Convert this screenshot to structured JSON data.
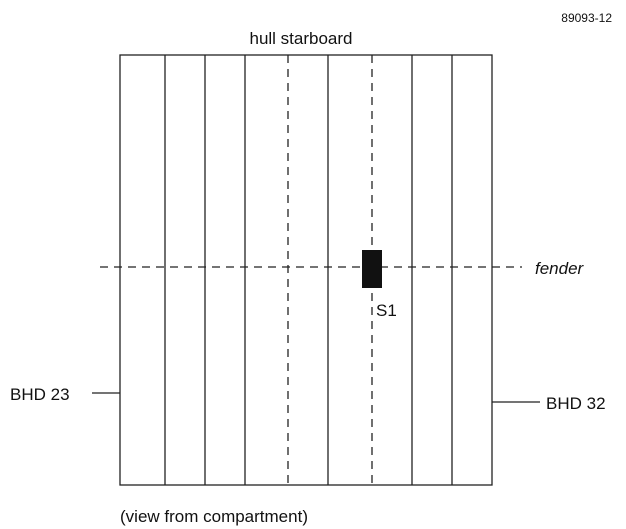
{
  "figure_id": "89093-12",
  "top_label": "hull starboard",
  "fender_label": "fender",
  "sensor_label": "S1",
  "left_label": "BHD 23",
  "right_label": "BHD 32",
  "caption": "(view from compartment)"
}
